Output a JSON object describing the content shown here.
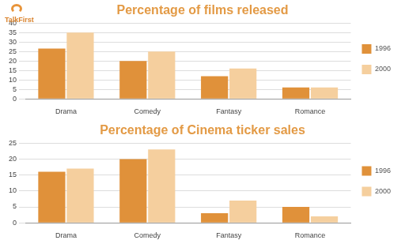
{
  "logo": "TalkFirst",
  "chart_data": [
    {
      "type": "bar",
      "title": "Percentage of films released",
      "categories": [
        "Drama",
        "Comedy",
        "Fantasy",
        "Romance"
      ],
      "series": [
        {
          "name": "1996",
          "color": "#e0913a",
          "values": [
            26.5,
            20,
            12,
            6
          ]
        },
        {
          "name": "2000",
          "color": "#f5cf9e",
          "values": [
            35,
            25,
            16,
            6
          ]
        }
      ],
      "ylim": [
        0,
        40
      ],
      "yticks": [
        0,
        5,
        10,
        15,
        20,
        25,
        30,
        35,
        40
      ],
      "grid": true,
      "legend": "right"
    },
    {
      "type": "bar",
      "title": "Percentage of Cinema ticker sales",
      "categories": [
        "Drama",
        "Comedy",
        "Fantasy",
        "Romance"
      ],
      "series": [
        {
          "name": "1996",
          "color": "#e0913a",
          "values": [
            16,
            20,
            3,
            5
          ]
        },
        {
          "name": "2000",
          "color": "#f5cf9e",
          "values": [
            17,
            23,
            7,
            2
          ]
        }
      ],
      "ylim": [
        0,
        25
      ],
      "yticks": [
        0,
        5,
        10,
        15,
        20,
        25
      ],
      "grid": true,
      "legend": "right"
    }
  ]
}
